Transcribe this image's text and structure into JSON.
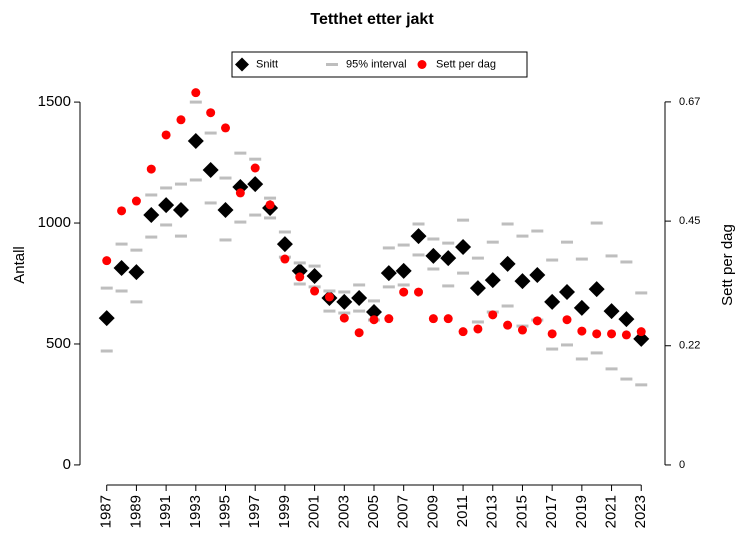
{
  "chart_data": {
    "type": "scatter",
    "title": "Tetthet etter jakt",
    "ylabel": "Antall",
    "y2label": "Sett per dag",
    "x": [
      1987,
      1988,
      1989,
      1990,
      1991,
      1992,
      1993,
      1994,
      1995,
      1996,
      1997,
      1998,
      1999,
      2000,
      2001,
      2002,
      2003,
      2004,
      2005,
      2006,
      2007,
      2008,
      2009,
      2010,
      2011,
      2012,
      2013,
      2014,
      2015,
      2016,
      2017,
      2018,
      2019,
      2020,
      2021,
      2022,
      2023
    ],
    "xlim": [
      1985.2,
      2024.6
    ],
    "xticks": [
      1987,
      1989,
      1991,
      1993,
      1995,
      1997,
      1999,
      2001,
      2003,
      2005,
      2007,
      2009,
      2011,
      2013,
      2015,
      2017,
      2019,
      2021,
      2023
    ],
    "ylim": [
      -83,
      1736
    ],
    "yticks": [
      0,
      500,
      1000,
      1500
    ],
    "y2lim": [
      -0.037,
      0.775
    ],
    "y2ticks": [
      0,
      0.22,
      0.45,
      0.67
    ],
    "legend": "top",
    "series": [
      {
        "name": "Snitt",
        "color": "#000000",
        "marker": "diamond",
        "values": [
          607,
          814,
          797,
          1033,
          1074,
          1054,
          1339,
          1219,
          1054,
          1149,
          1161,
          1062,
          913,
          802,
          781,
          690,
          674,
          690,
          632,
          793,
          802,
          946,
          864,
          855,
          901,
          731,
          764,
          831,
          760,
          785,
          674,
          715,
          649,
          727,
          636,
          603,
          521
        ]
      },
      {
        "name": "95% interval",
        "color": "#bebebe",
        "marker": "dash",
        "lower": [
          471,
          719,
          674,
          942,
          992,
          946,
          1178,
          1083,
          930,
          1004,
          1033,
          1021,
          859,
          748,
          736,
          636,
          628,
          636,
          599,
          736,
          744,
          868,
          810,
          740,
          793,
          591,
          632,
          657,
          574,
          599,
          479,
          496,
          438,
          463,
          397,
          355,
          331
        ],
        "upper": [
          731,
          913,
          888,
          1116,
          1145,
          1161,
          1500,
          1372,
          1186,
          1289,
          1264,
          1103,
          963,
          835,
          822,
          719,
          715,
          744,
          678,
          897,
          909,
          996,
          934,
          917,
          1012,
          855,
          921,
          996,
          946,
          967,
          847,
          921,
          851,
          1000,
          864,
          839,
          711
        ]
      },
      {
        "name": "Sett per dag",
        "color": "#ff0000",
        "marker": "circle",
        "axis": "y2",
        "values": [
          0.377,
          0.469,
          0.487,
          0.546,
          0.609,
          0.637,
          0.687,
          0.65,
          0.622,
          0.502,
          0.548,
          0.48,
          0.38,
          0.347,
          0.321,
          0.31,
          0.271,
          0.244,
          0.268,
          0.27,
          0.319,
          0.319,
          0.27,
          0.27,
          0.246,
          0.251,
          0.277,
          0.258,
          0.249,
          0.266,
          0.242,
          0.268,
          0.247,
          0.242,
          0.242,
          0.24,
          0.246
        ]
      }
    ]
  }
}
